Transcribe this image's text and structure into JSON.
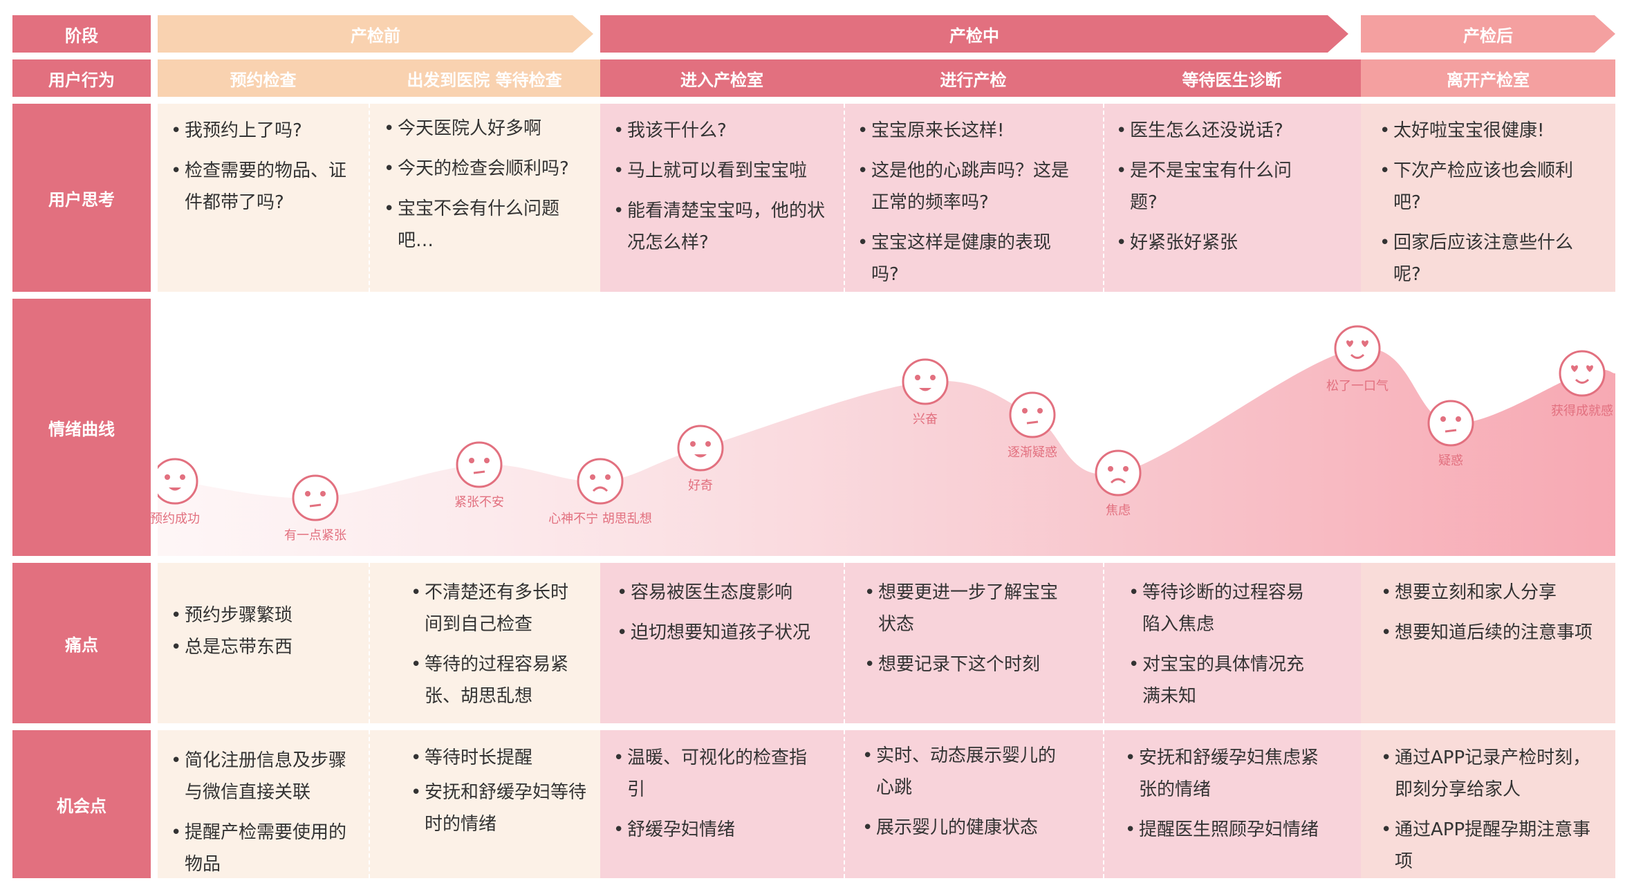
{
  "colors": {
    "row_label": "#e2707f",
    "before": "#f9d2b0",
    "during": "#e2707f",
    "after": "#f4a0a0",
    "cream": "#fcf1e7",
    "pink": "#f8d3da",
    "peach": "#f9dcd9"
  },
  "row_labels": {
    "stage": "阶段",
    "behavior": "用户行为",
    "thinking": "用户思考",
    "emotion": "情绪曲线",
    "pain": "痛点",
    "opportunity": "机会点"
  },
  "stages": {
    "before": "产检前",
    "during": "产检中",
    "after": "产检后"
  },
  "behaviors": [
    "预约检查",
    "出发到医院 等待检查",
    "进入产检室",
    "进行产检",
    "等待医生诊断",
    "离开产检室"
  ],
  "thinking": [
    [
      "我预约上了吗?",
      "检查需要的物品、证件都带了吗?"
    ],
    [
      "今天医院人好多啊",
      "今天的检查会顺利吗?",
      "宝宝不会有什么问题吧…"
    ],
    [
      "我该干什么?",
      "马上就可以看到宝宝啦",
      "能看清楚宝宝吗，他的状况怎么样?"
    ],
    [
      "宝宝原来长这样!",
      "这是他的心跳声吗？这是正常的频率吗?",
      "宝宝这样是健康的表现吗?"
    ],
    [
      "医生怎么还没说话?",
      "是不是宝宝有什么问题?",
      "好紧张好紧张"
    ],
    [
      "太好啦宝宝很健康!",
      "下次产检应该也会顺利吧?",
      "回家后应该注意些什么呢?"
    ]
  ],
  "emotions": [
    {
      "label": "预约成功",
      "face": "happy",
      "level": 0.15
    },
    {
      "label": "有一点紧张",
      "face": "neutral",
      "level": 0.05
    },
    {
      "label": "紧张不安",
      "face": "neutral",
      "level": 0.25
    },
    {
      "label": "心神不宁 胡思乱想",
      "face": "sad",
      "level": 0.15
    },
    {
      "label": "好奇",
      "face": "happy",
      "level": 0.35
    },
    {
      "label": "兴奋",
      "face": "happy",
      "level": 0.75
    },
    {
      "label": "逐渐疑惑",
      "face": "neutral",
      "level": 0.55
    },
    {
      "label": "焦虑",
      "face": "sad",
      "level": 0.2
    },
    {
      "label": "松了一口气",
      "face": "love",
      "level": 0.95
    },
    {
      "label": "疑惑",
      "face": "neutral",
      "level": 0.5
    },
    {
      "label": "获得成就感",
      "face": "love",
      "level": 0.8
    }
  ],
  "pain_points": [
    [
      "预约步骤繁琐",
      "总是忘带东西"
    ],
    [
      "不清楚还有多长时间到自己检查",
      "等待的过程容易紧张、胡思乱想"
    ],
    [
      "容易被医生态度影响",
      "迫切想要知道孩子状况"
    ],
    [
      "想要更进一步了解宝宝状态",
      "想要记录下这个时刻"
    ],
    [
      "等待诊断的过程容易陷入焦虑",
      "对宝宝的具体情况充满未知"
    ],
    [
      "想要立刻和家人分享",
      "想要知道后续的注意事项"
    ]
  ],
  "opportunities": [
    [
      "简化注册信息及步骤与微信直接关联",
      "提醒产检需要使用的物品"
    ],
    [
      "等待时长提醒",
      "安抚和舒缓孕妇等待时的情绪"
    ],
    [
      "温暖、可视化的检查指引",
      "舒缓孕妇情绪"
    ],
    [
      "实时、动态展示婴儿的心跳",
      "展示婴儿的健康状态"
    ],
    [
      "安抚和舒缓孕妇焦虑紧张的情绪",
      "提醒医生照顾孕妇情绪"
    ],
    [
      "通过APP记录产检时刻，即刻分享给家人",
      "通过APP提醒孕期注意事项"
    ]
  ]
}
